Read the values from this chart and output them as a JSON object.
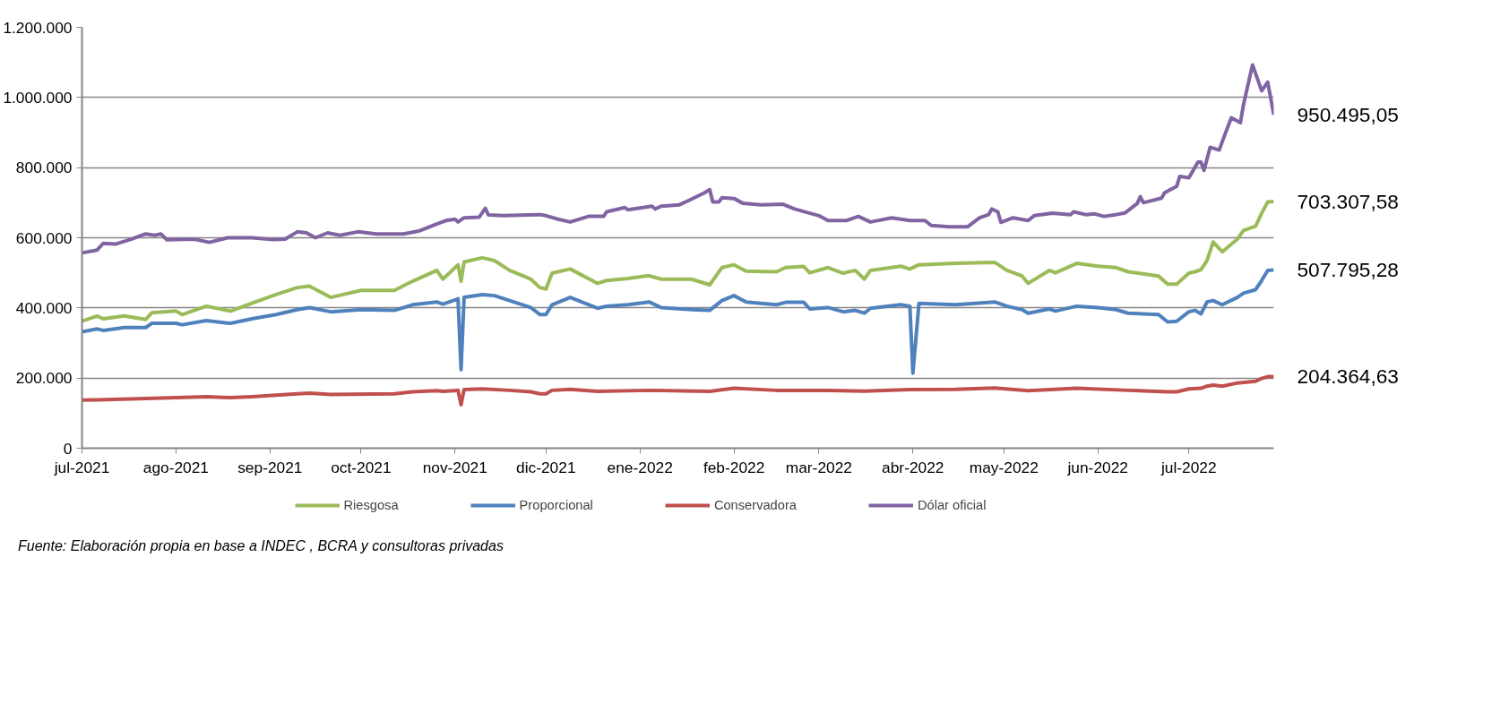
{
  "chart_data": {
    "type": "line",
    "xlim": [
      "2021-07-01",
      "2022-07-29"
    ],
    "xticks": [
      {
        "value": "2021-07-01",
        "label": "jul-2021"
      },
      {
        "value": "2021-08-01",
        "label": "ago-2021"
      },
      {
        "value": "2021-09-01",
        "label": "sep-2021"
      },
      {
        "value": "2021-10-01",
        "label": "oct-2021"
      },
      {
        "value": "2021-11-01",
        "label": "nov-2021"
      },
      {
        "value": "2021-12-01",
        "label": "dic-2021"
      },
      {
        "value": "2022-01-01",
        "label": "ene-2022"
      },
      {
        "value": "2022-02-01",
        "label": "feb-2022"
      },
      {
        "value": "2022-03-01",
        "label": "mar-2022"
      },
      {
        "value": "2022-04-01",
        "label": "abr-2022"
      },
      {
        "value": "2022-05-01",
        "label": "may-2022"
      },
      {
        "value": "2022-06-01",
        "label": "jun-2022"
      },
      {
        "value": "2022-07-01",
        "label": "jul-2022"
      }
    ],
    "ylim": [
      0,
      1200000
    ],
    "yticks": [
      0,
      {
        "value": 200000,
        "label": "200.000"
      },
      {
        "value": 400000,
        "label": "400.000"
      },
      {
        "value": 600000,
        "label": "600.000"
      },
      {
        "value": 800000,
        "label": "800.000"
      },
      {
        "value": 1000000,
        "label": "1.000.000"
      },
      {
        "value": 1200000,
        "label": "1.200.000"
      }
    ],
    "grid": "y",
    "legend": "bottom",
    "line_style": "solid",
    "series": [
      {
        "name": "Riesgosa",
        "color": "#9bbb59",
        "x": [
          "2021-07-01",
          "2021-07-06",
          "2021-07-08",
          "2021-07-15",
          "2021-07-22",
          "2021-07-24",
          "2021-08-01",
          "2021-08-03",
          "2021-08-11",
          "2021-08-19",
          "2021-08-26",
          "2021-09-03",
          "2021-09-10",
          "2021-09-14",
          "2021-09-21",
          "2021-10-01",
          "2021-10-12",
          "2021-10-18",
          "2021-10-26",
          "2021-10-28",
          "2021-11-02",
          "2021-11-03",
          "2021-11-04",
          "2021-11-10",
          "2021-11-14",
          "2021-11-19",
          "2021-11-26",
          "2021-11-29",
          "2021-12-01",
          "2021-12-03",
          "2021-12-09",
          "2021-12-18",
          "2021-12-21",
          "2021-12-28",
          "2022-01-04",
          "2022-01-08",
          "2022-01-18",
          "2022-01-24",
          "2022-01-28",
          "2022-02-01",
          "2022-02-05",
          "2022-02-15",
          "2022-02-18",
          "2022-02-24",
          "2022-02-26",
          "2022-03-04",
          "2022-03-09",
          "2022-03-13",
          "2022-03-16",
          "2022-03-18",
          "2022-03-28",
          "2022-03-31",
          "2022-04-03",
          "2022-04-15",
          "2022-04-28",
          "2022-05-02",
          "2022-05-07",
          "2022-05-09",
          "2022-05-16",
          "2022-05-18",
          "2022-05-25",
          "2022-06-01",
          "2022-06-07",
          "2022-06-11",
          "2022-06-21",
          "2022-06-24",
          "2022-06-27",
          "2022-07-01",
          "2022-07-03",
          "2022-07-05",
          "2022-07-07",
          "2022-07-09",
          "2022-07-12",
          "2022-07-17",
          "2022-07-19",
          "2022-07-23",
          "2022-07-25",
          "2022-07-27",
          "2022-07-29"
        ],
        "value_labels": [
          null,
          null,
          null,
          null,
          null,
          null,
          null,
          null,
          null,
          null,
          null,
          null,
          null,
          null,
          null,
          null,
          null,
          null,
          null,
          null,
          null,
          null,
          null,
          null,
          null,
          null,
          null,
          null,
          null,
          null,
          null,
          null,
          null,
          null,
          null,
          null,
          null,
          null,
          null,
          null,
          null,
          null,
          null,
          null,
          null,
          null,
          null,
          null,
          null,
          null,
          null,
          null,
          null,
          null,
          null,
          null,
          null,
          null,
          null,
          null,
          null,
          null,
          null,
          null,
          null,
          null,
          null,
          null,
          null,
          null,
          null,
          null,
          null,
          null,
          null,
          null,
          null,
          null,
          "703.307,58"
        ],
        "values": [
          362000,
          377000,
          369000,
          377000,
          367000,
          386000,
          391000,
          381000,
          405000,
          391000,
          413000,
          438000,
          458000,
          462000,
          430000,
          450000,
          450000,
          476000,
          507000,
          482000,
          523000,
          476000,
          531000,
          543000,
          535000,
          507000,
          482000,
          458000,
          454000,
          499000,
          511000,
          470000,
          478000,
          484000,
          492000,
          482000,
          482000,
          466000,
          515000,
          523000,
          505000,
          503000,
          515000,
          518000,
          500000,
          515000,
          499000,
          507000,
          482000,
          507000,
          519000,
          511000,
          523000,
          527000,
          530000,
          507000,
          491000,
          470000,
          507000,
          500000,
          527000,
          519000,
          515000,
          503000,
          491000,
          468000,
          468000,
          499000,
          503000,
          509000,
          535000,
          588000,
          560000,
          596000,
          621000,
          633000,
          670000,
          702000,
          703307.58
        ]
      },
      {
        "name": "Proporcional",
        "color": "#4f81bd",
        "x": [
          "2021-07-01",
          "2021-07-06",
          "2021-07-08",
          "2021-07-15",
          "2021-07-22",
          "2021-07-24",
          "2021-08-01",
          "2021-08-03",
          "2021-08-11",
          "2021-08-19",
          "2021-08-26",
          "2021-09-03",
          "2021-09-10",
          "2021-09-14",
          "2021-09-21",
          "2021-10-01",
          "2021-10-12",
          "2021-10-18",
          "2021-10-26",
          "2021-10-28",
          "2021-11-02",
          "2021-11-03",
          "2021-11-04",
          "2021-11-10",
          "2021-11-14",
          "2021-11-19",
          "2021-11-26",
          "2021-11-29",
          "2021-12-01",
          "2021-12-03",
          "2021-12-09",
          "2021-12-18",
          "2021-12-21",
          "2021-12-28",
          "2022-01-04",
          "2022-01-08",
          "2022-01-18",
          "2022-01-24",
          "2022-01-28",
          "2022-02-01",
          "2022-02-05",
          "2022-02-15",
          "2022-02-18",
          "2022-02-24",
          "2022-02-26",
          "2022-03-04",
          "2022-03-09",
          "2022-03-13",
          "2022-03-16",
          "2022-03-18",
          "2022-03-28",
          "2022-03-31",
          "2022-04-01",
          "2022-04-03",
          "2022-04-15",
          "2022-04-28",
          "2022-05-02",
          "2022-05-07",
          "2022-05-09",
          "2022-05-16",
          "2022-05-18",
          "2022-05-25",
          "2022-06-01",
          "2022-06-07",
          "2022-06-11",
          "2022-06-21",
          "2022-06-24",
          "2022-06-27",
          "2022-07-01",
          "2022-07-03",
          "2022-07-05",
          "2022-07-07",
          "2022-07-09",
          "2022-07-12",
          "2022-07-17",
          "2022-07-19",
          "2022-07-23",
          "2022-07-25",
          "2022-07-27",
          "2022-07-29"
        ],
        "value_labels": [
          null,
          null,
          null,
          null,
          null,
          null,
          null,
          null,
          null,
          null,
          null,
          null,
          null,
          null,
          null,
          null,
          null,
          null,
          null,
          null,
          null,
          null,
          null,
          null,
          null,
          null,
          null,
          null,
          null,
          null,
          null,
          null,
          null,
          null,
          null,
          null,
          null,
          null,
          null,
          null,
          null,
          null,
          null,
          null,
          null,
          null,
          null,
          null,
          null,
          null,
          null,
          null,
          null,
          null,
          null,
          null,
          null,
          null,
          null,
          null,
          null,
          null,
          null,
          null,
          null,
          null,
          null,
          null,
          null,
          null,
          null,
          null,
          null,
          null,
          null,
          null,
          null,
          null,
          null,
          "507.795,28"
        ],
        "values": [
          332000,
          340000,
          336000,
          344000,
          344000,
          356000,
          356000,
          352000,
          364000,
          356000,
          369000,
          381000,
          395000,
          401000,
          389000,
          395000,
          393000,
          409000,
          417000,
          411000,
          426000,
          224000,
          430000,
          438000,
          435000,
          421000,
          401000,
          381000,
          381000,
          409000,
          430000,
          399000,
          405000,
          409000,
          417000,
          401000,
          395000,
          393000,
          421000,
          435000,
          417000,
          409000,
          416000,
          416000,
          397000,
          401000,
          389000,
          393000,
          385000,
          399000,
          409000,
          405000,
          214000,
          413000,
          409000,
          417000,
          405000,
          395000,
          385000,
          397000,
          391000,
          405000,
          401000,
          395000,
          385000,
          381000,
          360000,
          362000,
          389000,
          393000,
          383000,
          417000,
          421000,
          409000,
          430000,
          442000,
          452000,
          478000,
          507000,
          507795.28
        ]
      },
      {
        "name": "Conservadora",
        "color": "#c0504d",
        "x": [
          "2021-07-01",
          "2021-07-06",
          "2021-07-22",
          "2021-08-01",
          "2021-08-11",
          "2021-08-19",
          "2021-08-26",
          "2021-09-03",
          "2021-09-10",
          "2021-09-14",
          "2021-09-21",
          "2021-10-12",
          "2021-10-18",
          "2021-10-26",
          "2021-10-28",
          "2021-11-02",
          "2021-11-03",
          "2021-11-04",
          "2021-11-10",
          "2021-11-19",
          "2021-11-26",
          "2021-11-29",
          "2021-12-01",
          "2021-12-03",
          "2021-12-09",
          "2021-12-18",
          "2022-01-04",
          "2022-01-24",
          "2022-02-01",
          "2022-02-15",
          "2022-03-04",
          "2022-03-16",
          "2022-03-31",
          "2022-04-15",
          "2022-04-28",
          "2022-05-09",
          "2022-05-25",
          "2022-06-11",
          "2022-06-24",
          "2022-06-27",
          "2022-07-01",
          "2022-07-05",
          "2022-07-07",
          "2022-07-09",
          "2022-07-12",
          "2022-07-17",
          "2022-07-23",
          "2022-07-25",
          "2022-07-27",
          "2022-07-29"
        ],
        "value_labels": [
          null,
          null,
          null,
          null,
          null,
          null,
          null,
          null,
          null,
          null,
          null,
          null,
          null,
          null,
          null,
          null,
          null,
          null,
          null,
          null,
          null,
          null,
          null,
          null,
          null,
          null,
          null,
          null,
          null,
          null,
          null,
          null,
          null,
          null,
          null,
          null,
          null,
          null,
          null,
          null,
          null,
          null,
          null,
          null,
          null,
          null,
          null,
          null,
          null,
          "204.364,63"
        ],
        "values": [
          137000,
          138000,
          142000,
          144000,
          147000,
          144000,
          147000,
          151000,
          155000,
          157000,
          153000,
          155000,
          161000,
          164000,
          162000,
          165000,
          124000,
          167000,
          169000,
          165000,
          161000,
          155000,
          155000,
          165000,
          168000,
          162000,
          165000,
          162000,
          171000,
          165000,
          165000,
          163000,
          167000,
          168000,
          172000,
          164000,
          171000,
          165000,
          161000,
          161000,
          169000,
          171000,
          177000,
          180000,
          177000,
          186000,
          191000,
          199000,
          204000,
          204364.63
        ]
      },
      {
        "name": "Dólar oficial",
        "color": "#8064a2",
        "x": [
          "2021-07-01",
          "2021-07-06",
          "2021-07-08",
          "2021-07-12",
          "2021-07-17",
          "2021-07-22",
          "2021-07-25",
          "2021-07-27",
          "2021-07-29",
          "2021-08-07",
          "2021-08-12",
          "2021-08-18",
          "2021-08-26",
          "2021-09-02",
          "2021-09-06",
          "2021-09-10",
          "2021-09-13",
          "2021-09-16",
          "2021-09-20",
          "2021-09-24",
          "2021-09-30",
          "2021-10-06",
          "2021-10-15",
          "2021-10-20",
          "2021-10-26",
          "2021-10-29",
          "2021-11-01",
          "2021-11-02",
          "2021-11-04",
          "2021-11-09",
          "2021-11-11",
          "2021-11-12",
          "2021-11-17",
          "2021-11-25",
          "2021-11-29",
          "2021-12-01",
          "2021-12-05",
          "2021-12-09",
          "2021-12-15",
          "2021-12-20",
          "2021-12-21",
          "2021-12-27",
          "2021-12-28",
          "2022-01-05",
          "2022-01-06",
          "2022-01-08",
          "2022-01-14",
          "2022-01-17",
          "2022-01-22",
          "2022-01-24",
          "2022-01-25",
          "2022-01-27",
          "2022-01-28",
          "2022-02-01",
          "2022-02-04",
          "2022-02-10",
          "2022-02-17",
          "2022-02-21",
          "2022-03-01",
          "2022-03-04",
          "2022-03-10",
          "2022-03-14",
          "2022-03-18",
          "2022-03-25",
          "2022-03-31",
          "2022-04-05",
          "2022-04-07",
          "2022-04-13",
          "2022-04-19",
          "2022-04-23",
          "2022-04-26",
          "2022-04-27",
          "2022-04-29",
          "2022-04-30",
          "2022-05-04",
          "2022-05-09",
          "2022-05-11",
          "2022-05-17",
          "2022-05-23",
          "2022-05-24",
          "2022-05-28",
          "2022-05-31",
          "2022-06-03",
          "2022-06-07",
          "2022-06-10",
          "2022-06-14",
          "2022-06-15",
          "2022-06-16",
          "2022-06-22",
          "2022-06-23",
          "2022-06-27",
          "2022-06-28",
          "2022-07-01",
          "2022-07-04",
          "2022-07-05",
          "2022-07-06",
          "2022-07-08",
          "2022-07-11",
          "2022-07-13",
          "2022-07-15",
          "2022-07-18",
          "2022-07-19",
          "2022-07-22",
          "2022-07-25",
          "2022-07-27",
          "2022-07-29"
        ],
        "value_labels": [
          null,
          null,
          null,
          null,
          null,
          null,
          null,
          null,
          null,
          null,
          null,
          null,
          null,
          null,
          null,
          null,
          null,
          null,
          null,
          null,
          null,
          null,
          null,
          null,
          null,
          null,
          null,
          null,
          null,
          null,
          null,
          null,
          null,
          null,
          null,
          null,
          null,
          null,
          null,
          null,
          null,
          null,
          null,
          null,
          null,
          null,
          null,
          null,
          null,
          null,
          null,
          null,
          null,
          null,
          null,
          null,
          null,
          null,
          null,
          null,
          null,
          null,
          null,
          null,
          null,
          null,
          null,
          null,
          null,
          null,
          null,
          null,
          null,
          null,
          null,
          null,
          null,
          null,
          null,
          null,
          null,
          null,
          null,
          null,
          null,
          null,
          null,
          null,
          null,
          null,
          null,
          null,
          null,
          null,
          null,
          null,
          null,
          null,
          null,
          null,
          null,
          null,
          null,
          null,
          null,
          "950.495,05"
        ],
        "values": [
          557000,
          565000,
          584000,
          582000,
          595000,
          611000,
          607000,
          611000,
          594000,
          596000,
          587000,
          600000,
          600000,
          595000,
          596000,
          617000,
          614000,
          600000,
          614000,
          607000,
          617000,
          611000,
          611000,
          619000,
          639000,
          649000,
          653000,
          645000,
          657000,
          659000,
          684000,
          665000,
          663000,
          665000,
          666000,
          663000,
          653000,
          645000,
          661000,
          661000,
          674000,
          686000,
          680000,
          690000,
          682000,
          690000,
          694000,
          706000,
          727000,
          737000,
          702000,
          702000,
          714000,
          712000,
          698000,
          694000,
          696000,
          682000,
          663000,
          649000,
          649000,
          661000,
          645000,
          657000,
          649000,
          649000,
          635000,
          631000,
          631000,
          657000,
          666000,
          682000,
          674000,
          644000,
          657000,
          649000,
          663000,
          670000,
          666000,
          674000,
          666000,
          668000,
          661000,
          666000,
          671000,
          698000,
          717000,
          700000,
          713000,
          728000,
          747000,
          775000,
          771000,
          816000,
          816000,
          792000,
          858000,
          850000,
          897000,
          942000,
          928000,
          979000,
          1093000,
          1019000,
          1044000,
          950495.05
        ]
      }
    ],
    "annotations": [
      "Fuente: Elaboración propia en base a INDEC , BCRA y consultoras privadas"
    ]
  }
}
